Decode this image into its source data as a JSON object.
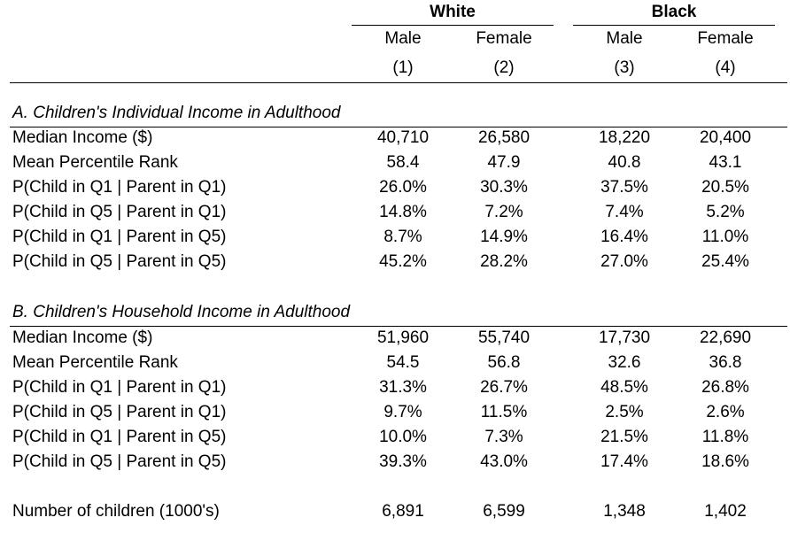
{
  "header": {
    "groups": [
      "White",
      "Black"
    ],
    "columns": [
      {
        "sex": "Male",
        "num": "(1)"
      },
      {
        "sex": "Female",
        "num": "(2)"
      },
      {
        "sex": "Male",
        "num": "(3)"
      },
      {
        "sex": "Female",
        "num": "(4)"
      }
    ]
  },
  "sectionA": {
    "title": "A. Children's Individual Income in Adulthood",
    "rows": [
      {
        "label": "Median Income ($)",
        "values": [
          "40,710",
          "26,580",
          "18,220",
          "20,400"
        ]
      },
      {
        "label": "Mean Percentile Rank",
        "values": [
          "58.4",
          "47.9",
          "40.8",
          "43.1"
        ]
      },
      {
        "label": "P(Child in Q1 | Parent in Q1)",
        "values": [
          "26.0%",
          "30.3%",
          "37.5%",
          "20.5%"
        ]
      },
      {
        "label": "P(Child in Q5 | Parent in Q1)",
        "values": [
          "14.8%",
          "7.2%",
          "7.4%",
          "5.2%"
        ]
      },
      {
        "label": "P(Child in Q1 | Parent in Q5)",
        "values": [
          "8.7%",
          "14.9%",
          "16.4%",
          "11.0%"
        ]
      },
      {
        "label": "P(Child in Q5 | Parent in Q5)",
        "values": [
          "45.2%",
          "28.2%",
          "27.0%",
          "25.4%"
        ]
      }
    ]
  },
  "sectionB": {
    "title": "B. Children's Household Income in Adulthood",
    "rows": [
      {
        "label": "Median Income ($)",
        "values": [
          "51,960",
          "55,740",
          "17,730",
          "22,690"
        ]
      },
      {
        "label": "Mean Percentile Rank",
        "values": [
          "54.5",
          "56.8",
          "32.6",
          "36.8"
        ]
      },
      {
        "label": "P(Child in Q1 | Parent in Q1)",
        "values": [
          "31.3%",
          "26.7%",
          "48.5%",
          "26.8%"
        ]
      },
      {
        "label": "P(Child in Q5 | Parent in Q1)",
        "values": [
          "9.7%",
          "11.5%",
          "2.5%",
          "2.6%"
        ]
      },
      {
        "label": "P(Child in Q1 | Parent in Q5)",
        "values": [
          "10.0%",
          "7.3%",
          "21.5%",
          "11.8%"
        ]
      },
      {
        "label": "P(Child in Q5 | Parent in Q5)",
        "values": [
          "39.3%",
          "43.0%",
          "17.4%",
          "18.6%"
        ]
      }
    ]
  },
  "footer": {
    "label": "Number of children (1000's)",
    "values": [
      "6,891",
      "6,599",
      "1,348",
      "1,402"
    ]
  }
}
